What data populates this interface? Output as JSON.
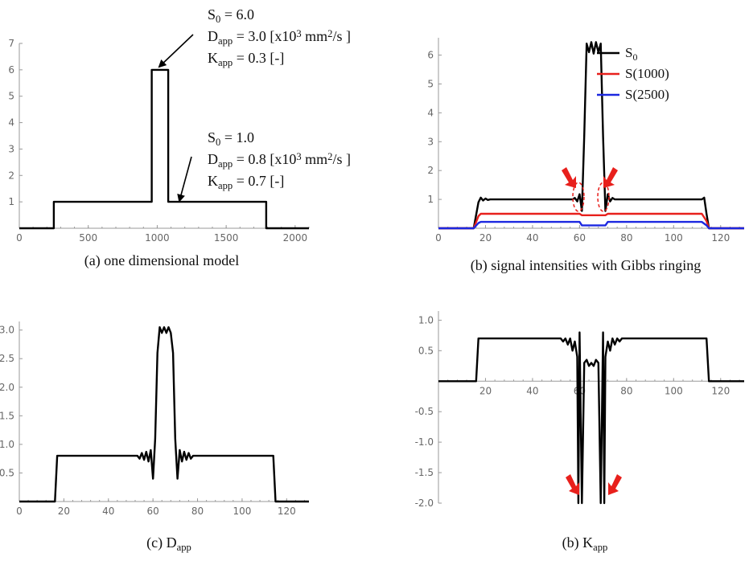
{
  "chart_data": [
    {
      "id": "a",
      "type": "line",
      "caption": "(a) one dimensional model",
      "xlim": [
        0,
        2100
      ],
      "ylim": [
        0,
        7
      ],
      "xticks": [
        0,
        500,
        1000,
        1500,
        2000
      ],
      "yticks": [
        1,
        2,
        3,
        4,
        5,
        6,
        7
      ],
      "series": [
        {
          "name": "model",
          "color": "#000000",
          "x": [
            0,
            250,
            250,
            960,
            960,
            1080,
            1080,
            1790,
            1790,
            2100
          ],
          "y": [
            0,
            0,
            1,
            1,
            6,
            6,
            1,
            1,
            0,
            0
          ]
        }
      ],
      "annotations": [
        {
          "lines": [
            {
              "parts": [
                {
                  "t": "S"
                },
                {
                  "t": "0",
                  "style": "sub"
                },
                {
                  "t": " = 6.0"
                }
              ]
            },
            {
              "parts": [
                {
                  "t": "D"
                },
                {
                  "t": "app",
                  "style": "sub"
                },
                {
                  "t": " = 3.0 [x10"
                },
                {
                  "t": "3",
                  "style": "sup"
                },
                {
                  "t": " mm"
                },
                {
                  "t": "2",
                  "style": "sup"
                },
                {
                  "t": "/s ]"
                }
              ]
            },
            {
              "parts": [
                {
                  "t": "K"
                },
                {
                  "t": "app",
                  "style": "sub"
                },
                {
                  "t": " = 0.3 [-]"
                }
              ]
            }
          ]
        },
        {
          "lines": [
            {
              "parts": [
                {
                  "t": "S"
                },
                {
                  "t": "0",
                  "style": "sub"
                },
                {
                  "t": " = 1.0"
                }
              ]
            },
            {
              "parts": [
                {
                  "t": "D"
                },
                {
                  "t": "app",
                  "style": "sub"
                },
                {
                  "t": " = 0.8 [x10"
                },
                {
                  "t": "3",
                  "style": "sup"
                },
                {
                  "t": " mm"
                },
                {
                  "t": "2",
                  "style": "sup"
                },
                {
                  "t": "/s ]"
                }
              ]
            },
            {
              "parts": [
                {
                  "t": "K"
                },
                {
                  "t": "app",
                  "style": "sub"
                },
                {
                  "t": " = 0.7 [-]"
                }
              ]
            }
          ]
        }
      ]
    },
    {
      "id": "b",
      "type": "line",
      "caption": "(b) signal intensities with Gibbs ringing",
      "xlim": [
        0,
        130
      ],
      "ylim": [
        0,
        6.6
      ],
      "xticks": [
        0,
        20,
        40,
        60,
        80,
        100,
        120
      ],
      "yticks": [
        1,
        2,
        3,
        4,
        5,
        6
      ],
      "legend": [
        {
          "parts": [
            {
              "t": "S"
            },
            {
              "t": "0",
              "style": "sub"
            }
          ],
          "color": "#000000"
        },
        {
          "parts": [
            {
              "t": "S(1000)"
            }
          ],
          "color": "#e8201c"
        },
        {
          "parts": [
            {
              "t": "S(2500)"
            }
          ],
          "color": "#1c28e0"
        }
      ],
      "series": [
        {
          "name": "S0",
          "color": "#000000",
          "x": [
            0,
            15,
            17,
            18,
            19,
            20,
            21,
            22,
            24,
            57,
            58,
            59,
            60,
            61,
            62,
            63,
            64,
            65,
            66,
            67,
            68,
            69,
            70,
            71,
            72,
            73,
            74,
            75,
            112,
            113,
            114,
            115,
            130
          ],
          "y": [
            0,
            0,
            0.9,
            1.06,
            0.96,
            1.03,
            0.98,
            1.0,
            1.0,
            1.0,
            1.05,
            0.93,
            1.18,
            0.6,
            3.2,
            6.4,
            6.1,
            6.45,
            6.05,
            6.45,
            6.1,
            6.4,
            3.2,
            0.6,
            1.18,
            0.93,
            1.05,
            1.0,
            1.0,
            1.06,
            0.5,
            0,
            0
          ]
        },
        {
          "name": "S(1000)",
          "color": "#e8201c",
          "x": [
            0,
            15,
            17,
            18,
            20,
            60,
            61,
            62,
            70,
            71,
            72,
            112,
            114,
            115,
            130
          ],
          "y": [
            0,
            0,
            0.42,
            0.5,
            0.5,
            0.5,
            0.45,
            0.45,
            0.45,
            0.45,
            0.5,
            0.5,
            0.25,
            0,
            0
          ]
        },
        {
          "name": "S(2500)",
          "color": "#1c28e0",
          "x": [
            0,
            15,
            17,
            18,
            20,
            60,
            61,
            62,
            70,
            71,
            72,
            112,
            114,
            115,
            130
          ],
          "y": [
            0,
            0,
            0.18,
            0.22,
            0.22,
            0.22,
            0.1,
            0.1,
            0.1,
            0.1,
            0.22,
            0.22,
            0.1,
            0,
            0
          ]
        }
      ]
    },
    {
      "id": "c",
      "type": "line",
      "caption_parts": [
        {
          "t": "(c) D"
        },
        {
          "t": "app",
          "style": "sub"
        }
      ],
      "xlim": [
        0,
        130
      ],
      "ylim": [
        0,
        3.15
      ],
      "xticks": [
        0,
        20,
        40,
        60,
        80,
        100,
        120
      ],
      "yticks": [
        0.5,
        1.0,
        1.5,
        2.0,
        2.5,
        3.0
      ],
      "ytickfmt": 1,
      "series": [
        {
          "name": "Dapp",
          "color": "#000000",
          "x": [
            0,
            16,
            17,
            20,
            53,
            54,
            55,
            56,
            57,
            58,
            59,
            60,
            61,
            62,
            63,
            64,
            65,
            66,
            67,
            68,
            69,
            70,
            71,
            72,
            73,
            74,
            75,
            76,
            77,
            78,
            113,
            114,
            115,
            130
          ],
          "y": [
            0,
            0,
            0.8,
            0.8,
            0.8,
            0.75,
            0.85,
            0.73,
            0.87,
            0.7,
            0.9,
            0.4,
            1.1,
            2.6,
            3.05,
            2.95,
            3.05,
            2.95,
            3.05,
            2.95,
            2.6,
            1.1,
            0.4,
            0.9,
            0.7,
            0.87,
            0.73,
            0.85,
            0.75,
            0.8,
            0.8,
            0.8,
            0,
            0
          ]
        }
      ]
    },
    {
      "id": "d",
      "type": "line",
      "caption_parts": [
        {
          "t": "(b) K"
        },
        {
          "t": "app",
          "style": "sub"
        }
      ],
      "xlim": [
        0,
        130
      ],
      "ylim": [
        -2.0,
        1.15
      ],
      "xticks": [
        20,
        40,
        60,
        80,
        100,
        120
      ],
      "yticks": [
        -2.0,
        -1.5,
        -1.0,
        -0.5,
        0.5,
        1.0
      ],
      "ytickfmt": 1,
      "series": [
        {
          "name": "Kapp",
          "color": "#000000",
          "x": [
            0,
            16,
            17,
            18,
            52,
            53,
            54,
            55,
            56,
            57,
            58,
            59,
            59.5,
            60,
            61,
            62,
            63,
            64,
            65,
            66,
            67,
            68,
            69,
            70,
            70.5,
            71,
            72,
            73,
            74,
            75,
            76,
            77,
            78,
            113,
            114,
            115,
            130
          ],
          "y": [
            0,
            0,
            0.7,
            0.7,
            0.7,
            0.65,
            0.7,
            0.6,
            0.7,
            0.5,
            0.65,
            0.4,
            -2.0,
            0.8,
            -2.0,
            0.3,
            0.35,
            0.25,
            0.3,
            0.25,
            0.35,
            0.3,
            -2.0,
            0.8,
            -2.0,
            0.4,
            0.65,
            0.5,
            0.7,
            0.6,
            0.7,
            0.65,
            0.7,
            0.7,
            0.7,
            0,
            0
          ]
        }
      ]
    }
  ],
  "colors": {
    "axis": "#9a9a9a",
    "arrow_red": "#e8201c",
    "ellipse_red": "#e8201c"
  }
}
